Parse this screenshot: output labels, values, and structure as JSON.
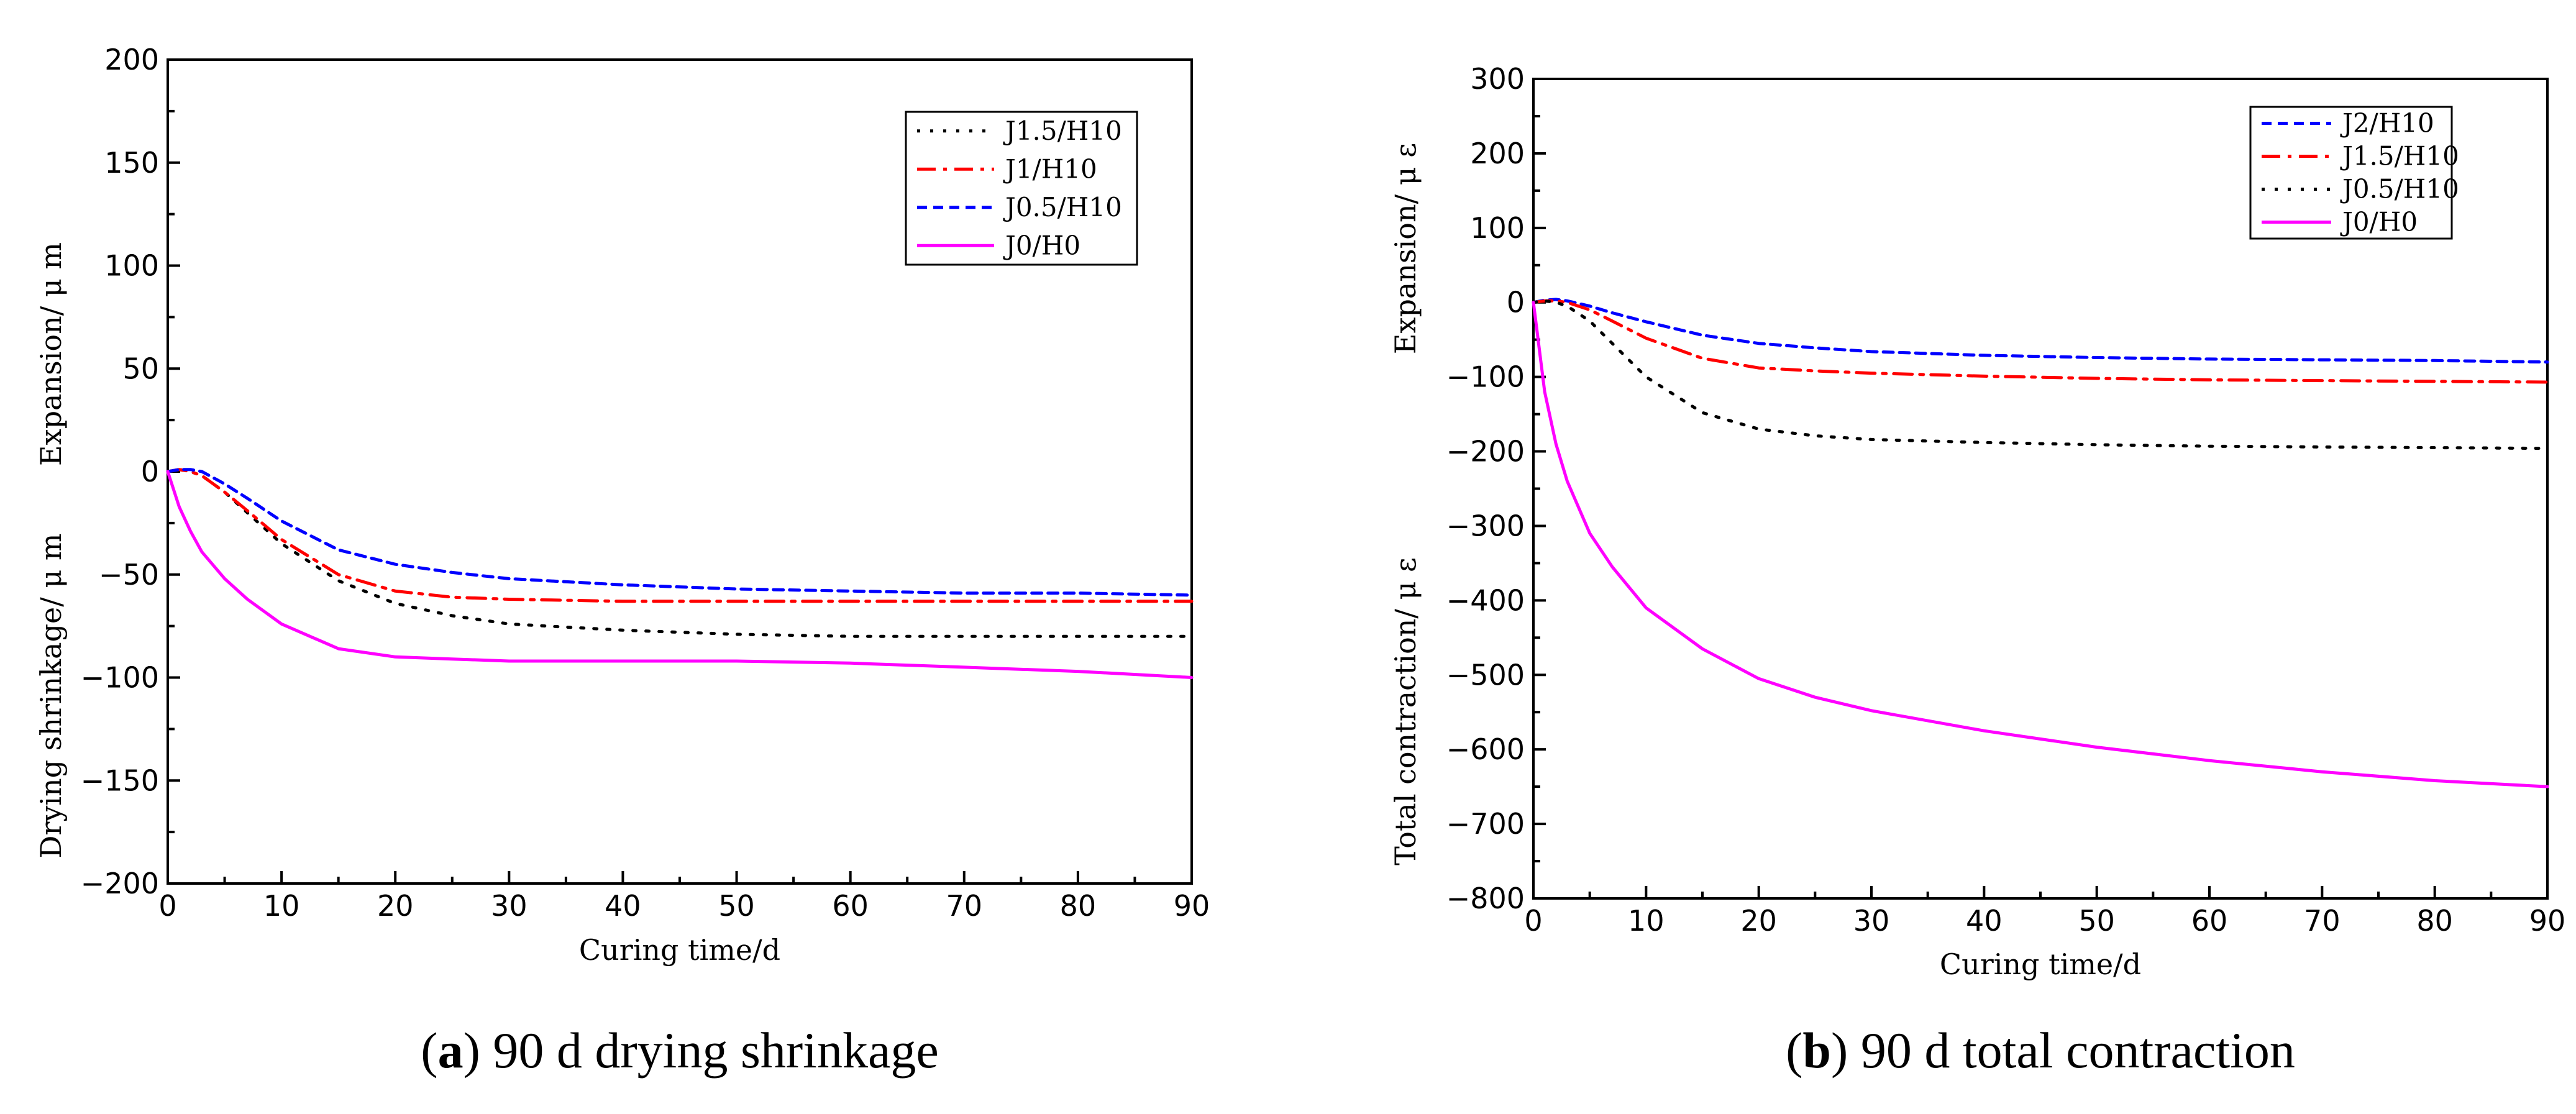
{
  "chart_data": [
    {
      "type": "line",
      "xlabel": "Curing time/d",
      "ylabel_upper": "Expansion/ μ m",
      "ylabel_lower": "Drying shrinkage/ μ m",
      "xlim": [
        0,
        90
      ],
      "ylim": [
        -200,
        200
      ],
      "xticks": [
        0,
        10,
        20,
        30,
        40,
        50,
        60,
        70,
        80,
        90
      ],
      "yticks": [
        -200,
        -150,
        -100,
        -50,
        0,
        50,
        100,
        150,
        200
      ],
      "xtick_labels": [
        "0",
        "10",
        "20",
        "30",
        "40",
        "50",
        "60",
        "70",
        "80",
        "90"
      ],
      "ytick_labels": [
        "−200",
        "−150",
        "−100",
        "−50",
        "0",
        "50",
        "100",
        "150",
        "200"
      ],
      "legend_position": "top-right",
      "caption_letter": "a",
      "caption_paren_open": "(",
      "caption_rest": ") 90 d drying shrinkage",
      "series": [
        {
          "name": "J1.5/H10",
          "color": "#000000",
          "dash": "dotted",
          "x": [
            0,
            1,
            2,
            3,
            5,
            7,
            10,
            15,
            20,
            25,
            30,
            40,
            50,
            60,
            70,
            80,
            90
          ],
          "y": [
            0,
            1,
            0,
            -2,
            -10,
            -20,
            -35,
            -53,
            -64,
            -70,
            -74,
            -77,
            -79,
            -80,
            -80,
            -80,
            -80
          ]
        },
        {
          "name": "J1/H10",
          "color": "#ff0000",
          "dash": "dashdot",
          "x": [
            0,
            1,
            2,
            3,
            5,
            7,
            10,
            15,
            20,
            25,
            30,
            40,
            50,
            60,
            70,
            80,
            90
          ],
          "y": [
            0,
            1,
            0,
            -2,
            -10,
            -19,
            -33,
            -50,
            -58,
            -61,
            -62,
            -63,
            -63,
            -63,
            -63,
            -63,
            -63
          ]
        },
        {
          "name": "J0.5/H10",
          "color": "#0000ff",
          "dash": "dashed",
          "x": [
            0,
            1,
            2,
            3,
            5,
            7,
            10,
            15,
            20,
            25,
            30,
            40,
            50,
            60,
            70,
            80,
            90
          ],
          "y": [
            0,
            1,
            1,
            0,
            -6,
            -13,
            -24,
            -38,
            -45,
            -49,
            -52,
            -55,
            -57,
            -58,
            -59,
            -59,
            -60
          ]
        },
        {
          "name": "J0/H0",
          "color": "#ff00ff",
          "dash": "solid",
          "x": [
            0,
            1,
            2,
            3,
            5,
            7,
            10,
            15,
            20,
            25,
            30,
            40,
            50,
            60,
            70,
            80,
            90
          ],
          "y": [
            0,
            -17,
            -29,
            -39,
            -52,
            -62,
            -74,
            -86,
            -90,
            -91,
            -92,
            -92,
            -92,
            -93,
            -95,
            -97,
            -100
          ]
        }
      ]
    },
    {
      "type": "line",
      "xlabel": "Curing time/d",
      "ylabel_upper": "Expansion/ μ ε",
      "ylabel_lower": "Total contraction/ μ ε",
      "xlim": [
        0,
        90
      ],
      "ylim": [
        -800,
        300
      ],
      "xticks": [
        0,
        10,
        20,
        30,
        40,
        50,
        60,
        70,
        80,
        90
      ],
      "yticks": [
        -800,
        -700,
        -600,
        -500,
        -400,
        -300,
        -200,
        -100,
        0,
        100,
        200,
        300
      ],
      "xtick_labels": [
        "0",
        "10",
        "20",
        "30",
        "40",
        "50",
        "60",
        "70",
        "80",
        "90"
      ],
      "ytick_labels": [
        "−800",
        "−700",
        "−600",
        "−500",
        "−400",
        "−300",
        "−200",
        "−100",
        "0",
        "100",
        "200",
        "300"
      ],
      "legend_position": "top-right",
      "caption_letter": "b",
      "caption_paren_open": "(",
      "caption_rest": ") 90 d total contraction",
      "series": [
        {
          "name": "J2/H10",
          "color": "#0000ff",
          "dash": "dashed",
          "x": [
            0,
            1,
            2,
            3,
            5,
            7,
            10,
            15,
            20,
            25,
            30,
            40,
            50,
            60,
            70,
            80,
            90
          ],
          "y": [
            0,
            3,
            4,
            2,
            -5,
            -14,
            -26,
            -44,
            -55,
            -61,
            -66,
            -71,
            -74,
            -76,
            -77,
            -78,
            -80
          ]
        },
        {
          "name": "J1.5/H10",
          "color": "#ff0000",
          "dash": "dashdot",
          "x": [
            0,
            1,
            2,
            3,
            5,
            7,
            10,
            15,
            20,
            25,
            30,
            40,
            50,
            60,
            70,
            80,
            90
          ],
          "y": [
            0,
            2,
            2,
            0,
            -10,
            -25,
            -48,
            -75,
            -88,
            -92,
            -95,
            -99,
            -102,
            -104,
            -105,
            -106,
            -107
          ]
        },
        {
          "name": "J0.5/H10",
          "color": "#000000",
          "dash": "dotted",
          "x": [
            0,
            1,
            2,
            3,
            5,
            7,
            10,
            15,
            20,
            25,
            30,
            40,
            50,
            60,
            70,
            80,
            90
          ],
          "y": [
            0,
            2,
            0,
            -5,
            -25,
            -55,
            -100,
            -148,
            -170,
            -179,
            -184,
            -188,
            -191,
            -193,
            -194,
            -195,
            -196
          ]
        },
        {
          "name": "J0/H0",
          "color": "#ff00ff",
          "dash": "solid",
          "x": [
            0,
            1,
            2,
            3,
            5,
            7,
            10,
            15,
            20,
            25,
            30,
            40,
            50,
            60,
            70,
            80,
            90
          ],
          "y": [
            0,
            -120,
            -190,
            -240,
            -310,
            -355,
            -410,
            -465,
            -505,
            -530,
            -548,
            -575,
            -597,
            -615,
            -630,
            -642,
            -650
          ]
        }
      ]
    }
  ]
}
